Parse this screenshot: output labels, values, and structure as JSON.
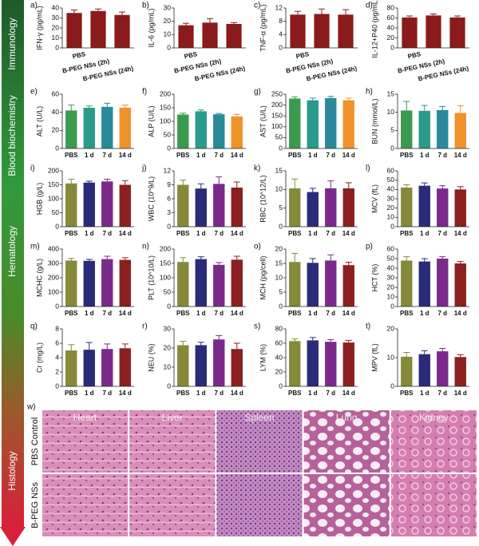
{
  "side_labels": [
    "Immunology",
    "Blood biochemistry",
    "Hematology",
    "Histology"
  ],
  "chart_data": [
    {
      "type": "bar",
      "label": "a)",
      "y_label": "IFN-γ (pg/mL)",
      "categories": [
        "PBS",
        "B-PEG NSs (2h)",
        "B-PEG NSs (24h)"
      ],
      "values": [
        35,
        37,
        33
      ],
      "errors": [
        3,
        2,
        3
      ],
      "colors": [
        "#8b1a1a",
        "#8b1a1a",
        "#8b1a1a"
      ],
      "ylim": [
        0,
        40
      ],
      "yticks": [
        0,
        10,
        20,
        30,
        40
      ]
    },
    {
      "type": "bar",
      "label": "b)",
      "y_label": "IL-6 (pg/mL)",
      "categories": [
        "PBS",
        "B-PEG NSs (2h)",
        "B-PEG NSs (24h)"
      ],
      "values": [
        17,
        19,
        18
      ],
      "errors": [
        1.5,
        3,
        1
      ],
      "colors": [
        "#8b1a1a",
        "#8b1a1a",
        "#8b1a1a"
      ],
      "ylim": [
        0,
        30
      ],
      "yticks": [
        0,
        10,
        20,
        30
      ]
    },
    {
      "type": "bar",
      "label": "c)",
      "y_label": "TNF-α (pg/mL)",
      "categories": [
        "PBS",
        "B-PEG NSs (2h)",
        "B-PEG NSs (24h)"
      ],
      "values": [
        10,
        10.2,
        10
      ],
      "errors": [
        1,
        1.5,
        1.5
      ],
      "colors": [
        "#8b1a1a",
        "#8b1a1a",
        "#8b1a1a"
      ],
      "ylim": [
        0,
        12
      ],
      "yticks": [
        0,
        4,
        8,
        12
      ]
    },
    {
      "type": "bar",
      "label": "d)",
      "y_label": "IL-12+P40 (pg/mL)",
      "categories": [
        "PBS",
        "B-PEG NSs (2h)",
        "B-PEG NSs (24h)"
      ],
      "values": [
        61,
        65,
        61
      ],
      "errors": [
        3,
        3,
        3
      ],
      "colors": [
        "#8b1a1a",
        "#8b1a1a",
        "#8b1a1a"
      ],
      "ylim": [
        0,
        80
      ],
      "yticks": [
        0,
        20,
        40,
        60,
        80
      ]
    },
    {
      "type": "bar",
      "label": "e)",
      "y_label": "ALT (U/L)",
      "categories": [
        "PBS",
        "1 d",
        "7 d",
        "14 d"
      ],
      "values": [
        42,
        45,
        46,
        45
      ],
      "errors": [
        6,
        2,
        4,
        3
      ],
      "colors": [
        "#3c9a50",
        "#2a9a8a",
        "#2a8a9a",
        "#f0922a"
      ],
      "ylim": [
        0,
        60
      ],
      "yticks": [
        0,
        20,
        40,
        60
      ]
    },
    {
      "type": "bar",
      "label": "f)",
      "y_label": "ALP (U/L)",
      "categories": [
        "PBS",
        "1 d",
        "7 d",
        "14 d"
      ],
      "values": [
        125,
        137,
        126,
        118
      ],
      "errors": [
        5,
        5,
        3,
        8
      ],
      "colors": [
        "#3c9a50",
        "#2a9a8a",
        "#2a8a9a",
        "#f0922a"
      ],
      "ylim": [
        0,
        200
      ],
      "yticks": [
        0,
        50,
        100,
        150,
        200
      ]
    },
    {
      "type": "bar",
      "label": "g)",
      "y_label": "AST (U/L)",
      "categories": [
        "PBS",
        "1 d",
        "7 d",
        "14 d"
      ],
      "values": [
        230,
        222,
        232,
        222
      ],
      "errors": [
        8,
        10,
        8,
        10
      ],
      "colors": [
        "#3c9a50",
        "#2a9a8a",
        "#2a8a9a",
        "#f0922a"
      ],
      "ylim": [
        0,
        250
      ],
      "yticks": [
        0,
        50,
        100,
        150,
        200,
        250
      ]
    },
    {
      "type": "bar",
      "label": "h)",
      "y_label": "BUN (mmol/L)",
      "categories": [
        "PBS",
        "1 d",
        "7 d",
        "14 d"
      ],
      "values": [
        10.5,
        10.4,
        10.6,
        9.8
      ],
      "errors": [
        2.5,
        1.5,
        1,
        2
      ],
      "colors": [
        "#3c9a50",
        "#2a9a8a",
        "#2a8a9a",
        "#f0922a"
      ],
      "ylim": [
        0,
        15
      ],
      "yticks": [
        0,
        5,
        10,
        15
      ]
    },
    {
      "type": "bar",
      "label": "i)",
      "y_label": "HGB (g/L)",
      "categories": [
        "PBS",
        "1 d",
        "7 d",
        "14 d"
      ],
      "values": [
        155,
        158,
        162,
        150
      ],
      "errors": [
        15,
        5,
        8,
        15
      ],
      "colors": [
        "#858a3a",
        "#2b2b7a",
        "#7a2b8a",
        "#8b2020"
      ],
      "ylim": [
        0,
        200
      ],
      "yticks": [
        0,
        50,
        100,
        150,
        200
      ]
    },
    {
      "type": "bar",
      "label": "j)",
      "y_label": "WBC (10^9/L)",
      "categories": [
        "PBS",
        "1 d",
        "7 d",
        "14 d"
      ],
      "values": [
        9,
        8.2,
        9.2,
        8.4
      ],
      "errors": [
        1,
        1,
        1.5,
        1.2
      ],
      "colors": [
        "#858a3a",
        "#2b2b7a",
        "#7a2b8a",
        "#8b2020"
      ],
      "ylim": [
        0,
        12
      ],
      "yticks": [
        0,
        3,
        6,
        9,
        12
      ]
    },
    {
      "type": "bar",
      "label": "k)",
      "y_label": "RBC (10^12/L)",
      "categories": [
        "PBS",
        "1 d",
        "7 d",
        "14 d"
      ],
      "values": [
        10.3,
        9.3,
        10.3,
        10.3
      ],
      "errors": [
        2.5,
        1,
        2,
        1.5
      ],
      "colors": [
        "#858a3a",
        "#2b2b7a",
        "#7a2b8a",
        "#8b2020"
      ],
      "ylim": [
        0,
        15
      ],
      "yticks": [
        0,
        5,
        10,
        15
      ]
    },
    {
      "type": "bar",
      "label": "l)",
      "y_label": "MCV (fL)",
      "categories": [
        "PBS",
        "1 d",
        "7 d",
        "14 d"
      ],
      "values": [
        42,
        44,
        41,
        40
      ],
      "errors": [
        3,
        3,
        3,
        3
      ],
      "colors": [
        "#858a3a",
        "#2b2b7a",
        "#7a2b8a",
        "#8b2020"
      ],
      "ylim": [
        0,
        60
      ],
      "yticks": [
        0,
        10,
        20,
        30,
        40,
        50,
        60
      ]
    },
    {
      "type": "bar",
      "label": "m)",
      "y_label": "MCHC (g/L)",
      "categories": [
        "PBS",
        "1 d",
        "7 d",
        "14 d"
      ],
      "values": [
        320,
        318,
        330,
        325
      ],
      "errors": [
        15,
        10,
        20,
        15
      ],
      "colors": [
        "#858a3a",
        "#2b2b7a",
        "#7a2b8a",
        "#8b2020"
      ],
      "ylim": [
        0,
        400
      ],
      "yticks": [
        0,
        100,
        200,
        300,
        400
      ]
    },
    {
      "type": "bar",
      "label": "n)",
      "y_label": "PLT (10^10/L)",
      "categories": [
        "PBS",
        "1 d",
        "7 d",
        "14 d"
      ],
      "values": [
        155,
        165,
        145,
        163
      ],
      "errors": [
        15,
        8,
        8,
        12
      ],
      "colors": [
        "#858a3a",
        "#2b2b7a",
        "#7a2b8a",
        "#8b2020"
      ],
      "ylim": [
        0,
        200
      ],
      "yticks": [
        0,
        50,
        100,
        150,
        200
      ]
    },
    {
      "type": "bar",
      "label": "o)",
      "y_label": "MCH (pg/cell)",
      "categories": [
        "PBS",
        "1 d",
        "7 d",
        "14 d"
      ],
      "values": [
        15.5,
        15.2,
        16,
        14.4
      ],
      "errors": [
        3,
        1.5,
        2,
        1
      ],
      "colors": [
        "#858a3a",
        "#2b2b7a",
        "#7a2b8a",
        "#8b2020"
      ],
      "ylim": [
        0,
        20
      ],
      "yticks": [
        0,
        5,
        10,
        15,
        20
      ]
    },
    {
      "type": "bar",
      "label": "p)",
      "y_label": "HCT (%)",
      "categories": [
        "PBS",
        "1 d",
        "7 d",
        "14 d"
      ],
      "values": [
        48,
        47,
        50,
        45
      ],
      "errors": [
        4,
        3,
        2,
        2
      ],
      "colors": [
        "#858a3a",
        "#2b2b7a",
        "#7a2b8a",
        "#8b2020"
      ],
      "ylim": [
        0,
        60
      ],
      "yticks": [
        0,
        10,
        20,
        30,
        40,
        50,
        60
      ]
    },
    {
      "type": "bar",
      "label": "q)",
      "y_label": "Cr (mg/L)",
      "categories": [
        "PBS",
        "1 d",
        "7 d",
        "14 d"
      ],
      "values": [
        5,
        5.1,
        5.2,
        5.3
      ],
      "errors": [
        0.8,
        1,
        0.7,
        0.6
      ],
      "colors": [
        "#858a3a",
        "#2b2b7a",
        "#7a2b8a",
        "#8b2020"
      ],
      "ylim": [
        0,
        8
      ],
      "yticks": [
        0,
        2,
        4,
        6,
        8
      ]
    },
    {
      "type": "bar",
      "label": "r)",
      "y_label": "NEU (%)",
      "categories": [
        "PBS",
        "1 d",
        "7 d",
        "14 d"
      ],
      "values": [
        21.5,
        21.5,
        24.5,
        19.5
      ],
      "errors": [
        2,
        1.5,
        2,
        3
      ],
      "colors": [
        "#858a3a",
        "#2b2b7a",
        "#7a2b8a",
        "#8b2020"
      ],
      "ylim": [
        0,
        30
      ],
      "yticks": [
        0,
        10,
        20,
        30
      ]
    },
    {
      "type": "bar",
      "label": "s)",
      "y_label": "LYM (%)",
      "categories": [
        "PBS",
        "1 d",
        "7 d",
        "14 d"
      ],
      "values": [
        63,
        64,
        62,
        61
      ],
      "errors": [
        3,
        4,
        3,
        3
      ],
      "colors": [
        "#858a3a",
        "#2b2b7a",
        "#7a2b8a",
        "#8b2020"
      ],
      "ylim": [
        0,
        80
      ],
      "yticks": [
        0,
        20,
        40,
        60,
        80
      ]
    },
    {
      "type": "bar",
      "label": "t)",
      "y_label": "MPV (fL)",
      "categories": [
        "PBS",
        "1 d",
        "7 d",
        "14 d"
      ],
      "values": [
        10.3,
        11.2,
        12.2,
        10.2
      ],
      "errors": [
        1.5,
        1.2,
        1,
        0.8
      ],
      "colors": [
        "#858a3a",
        "#2b2b7a",
        "#7a2b8a",
        "#8b2020"
      ],
      "ylim": [
        0,
        20
      ],
      "yticks": [
        0,
        10,
        20
      ]
    }
  ],
  "histology": {
    "label": "w)",
    "columns": [
      "Heart",
      "Liver",
      "Spleen",
      "Lung",
      "Kidney"
    ],
    "rows": [
      "PBS Control",
      "B-PEG NSs"
    ]
  }
}
